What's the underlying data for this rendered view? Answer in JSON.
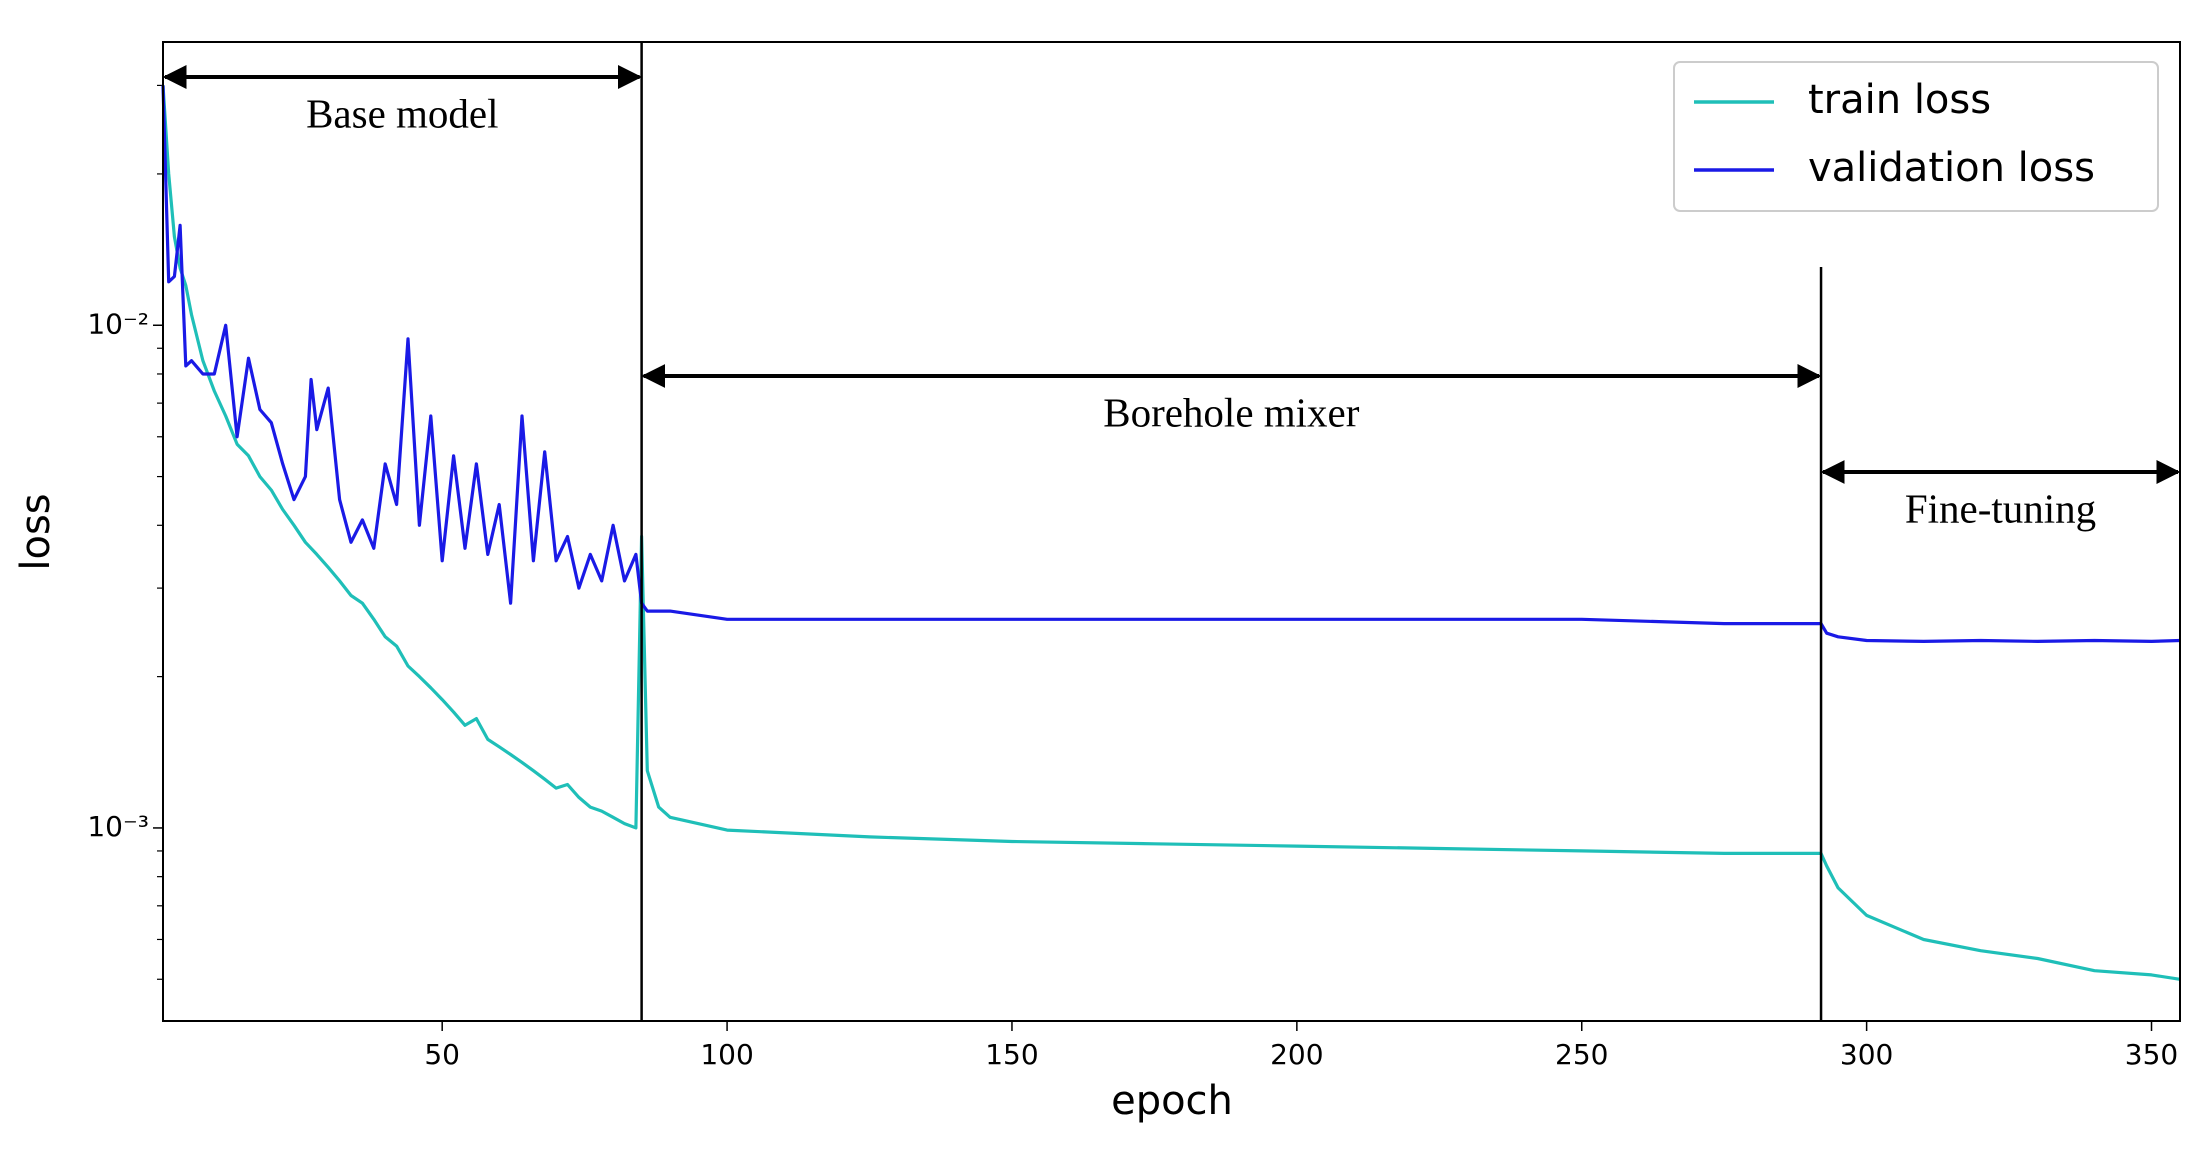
{
  "chart_data": {
    "type": "line",
    "x_label": "epoch",
    "y_label": "loss",
    "x": [
      1,
      2,
      3,
      4,
      5,
      6,
      8,
      10,
      12,
      14,
      16,
      18,
      20,
      22,
      24,
      26,
      27,
      28,
      30,
      32,
      34,
      36,
      38,
      40,
      42,
      44,
      46,
      48,
      50,
      52,
      54,
      56,
      58,
      60,
      62,
      64,
      66,
      68,
      70,
      72,
      74,
      76,
      78,
      80,
      82,
      84,
      85,
      86,
      88,
      90,
      100,
      125,
      150,
      175,
      200,
      225,
      250,
      275,
      292,
      293,
      295,
      300,
      310,
      320,
      330,
      340,
      350,
      355
    ],
    "series": [
      {
        "name": "train loss",
        "color": "#1fbfb8",
        "values": [
          0.03,
          0.02,
          0.015,
          0.013,
          0.012,
          0.0105,
          0.0085,
          0.0074,
          0.0066,
          0.0058,
          0.0055,
          0.005,
          0.0047,
          0.0043,
          0.004,
          0.0037,
          0.0036,
          0.0035,
          0.0033,
          0.0031,
          0.0029,
          0.0028,
          0.0026,
          0.0024,
          0.0023,
          0.0021,
          0.002,
          0.0019,
          0.0018,
          0.0017,
          0.0016,
          0.00165,
          0.0015,
          0.00145,
          0.0014,
          0.00135,
          0.0013,
          0.00125,
          0.0012,
          0.00122,
          0.00115,
          0.0011,
          0.00108,
          0.00105,
          0.00102,
          0.001,
          0.0038,
          0.0013,
          0.0011,
          0.00105,
          0.00099,
          0.00096,
          0.00094,
          0.00093,
          0.00092,
          0.00091,
          0.0009,
          0.00089,
          0.00089,
          0.00084,
          0.00076,
          0.00067,
          0.0006,
          0.00057,
          0.00055,
          0.00052,
          0.00051,
          0.0005
        ]
      },
      {
        "name": "validation loss",
        "color": "#1a1ae6",
        "values": [
          0.03,
          0.0122,
          0.0125,
          0.0158,
          0.0083,
          0.0085,
          0.008,
          0.008,
          0.01,
          0.006,
          0.0086,
          0.0068,
          0.0064,
          0.0053,
          0.0045,
          0.005,
          0.0078,
          0.0062,
          0.0075,
          0.0045,
          0.0037,
          0.0041,
          0.0036,
          0.0053,
          0.0044,
          0.0094,
          0.004,
          0.0066,
          0.0034,
          0.0055,
          0.0036,
          0.0053,
          0.0035,
          0.0044,
          0.0028,
          0.0066,
          0.0034,
          0.0056,
          0.0034,
          0.0038,
          0.003,
          0.0035,
          0.0031,
          0.004,
          0.0031,
          0.0035,
          0.0028,
          0.0027,
          0.0027,
          0.0027,
          0.0026,
          0.0026,
          0.0026,
          0.0026,
          0.0026,
          0.0026,
          0.0026,
          0.00255,
          0.00255,
          0.00244,
          0.0024,
          0.00236,
          0.00235,
          0.00236,
          0.00235,
          0.00236,
          0.00235,
          0.00236
        ]
      }
    ],
    "xlim": [
      1,
      355
    ],
    "ylim": [
      0.000413,
      0.0366
    ],
    "log_y": true,
    "xticks": [
      50,
      100,
      150,
      200,
      250,
      300,
      350
    ],
    "yticks": [
      {
        "value": 0.001,
        "label": "10⁻³"
      },
      {
        "value": 0.01,
        "label": "10⁻²"
      }
    ],
    "yminor_ticks": [
      0.0005,
      0.0006,
      0.0007,
      0.0008,
      0.0009,
      0.002,
      0.003,
      0.004,
      0.005,
      0.006,
      0.007,
      0.008,
      0.009,
      0.02,
      0.03
    ],
    "legend": "upper right",
    "vlines": [
      85,
      292
    ],
    "annotations": [
      {
        "text": "Base model",
        "x_start": 1,
        "x_end": 85
      },
      {
        "text": "Borehole mixer",
        "x_start": 85,
        "x_end": 292
      },
      {
        "text": "Fine-tuning",
        "x_start": 292,
        "x_end": 355
      }
    ]
  }
}
